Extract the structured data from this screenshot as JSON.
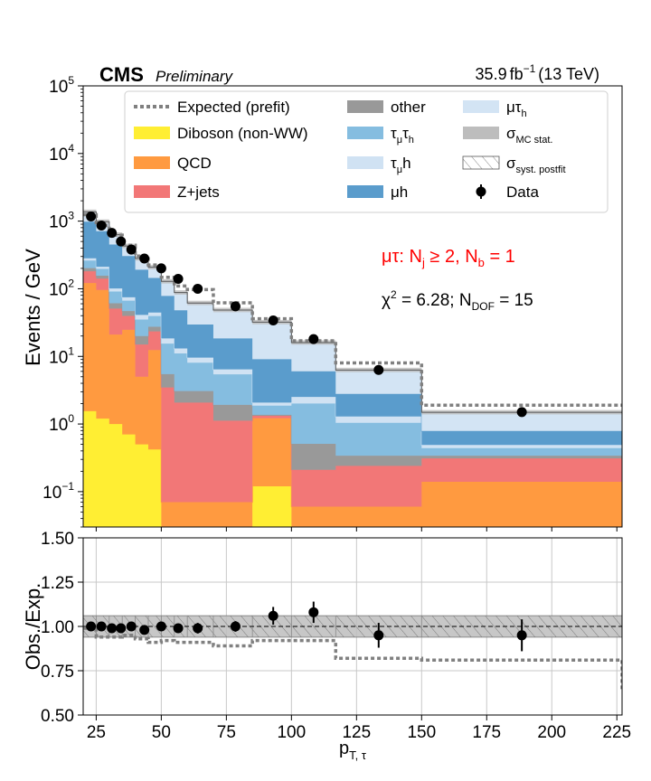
{
  "header": {
    "experiment": "CMS",
    "status": "Preliminary",
    "lumi": "35.9",
    "lumi_unit": "fb",
    "lumi_exp": "−1",
    "energy": "(13 TeV)"
  },
  "annotations": {
    "category": {
      "text_pre": "μτ: N",
      "sub1": "j",
      "mid": " ≥ 2, N",
      "sub2": "b",
      "post": " = 1",
      "color": "#ff0000"
    },
    "chi2": {
      "pre": "χ",
      "sup": "2",
      "mid": " = 6.28; N",
      "sub": "DOF",
      "post": " = 15"
    }
  },
  "legend": {
    "items": [
      {
        "label": "Expected (prefit)",
        "kind": "dotted",
        "color": "#808080"
      },
      {
        "label": "Diboson (non-WW)",
        "kind": "patch",
        "color": "#ffee33"
      },
      {
        "label": "QCD",
        "kind": "patch",
        "color": "#ff9a40"
      },
      {
        "label": "Z+jets",
        "kind": "patch",
        "color": "#f27777"
      },
      {
        "label": "other",
        "kind": "patch",
        "color": "#999999"
      },
      {
        "label": "τ",
        "sub": "μ",
        "label2": "τ",
        "sub2": "h",
        "kind": "patch",
        "color": "#85bde0"
      },
      {
        "label": "τ",
        "sub": "μ",
        "label2": "h",
        "sub2": "",
        "kind": "patch",
        "color": "#d0e2f3"
      },
      {
        "label": "μh",
        "kind": "patch",
        "color": "#5a9ccc"
      },
      {
        "label": "μτ",
        "sub": "",
        "label2": "",
        "sub2": "h",
        "kind": "patch",
        "color": "#d3e4f4"
      },
      {
        "label": "σ",
        "sub": "MC stat.",
        "kind": "patch",
        "color": "#bdbdbd"
      },
      {
        "label": "σ",
        "sub": "syst. postfit",
        "kind": "hatch",
        "color": "#ffffff"
      },
      {
        "label": "Data",
        "kind": "marker",
        "color": "#000000"
      }
    ]
  },
  "chart_data": [
    {
      "type": "area",
      "ylabel": "Events / GeV",
      "yscale": "log",
      "ylim": [
        0.03,
        100000
      ],
      "xlim": [
        20,
        227
      ],
      "yticks": [
        {
          "v": 0.1,
          "base": "10",
          "exp": "−1"
        },
        {
          "v": 1,
          "base": "10",
          "exp": "0"
        },
        {
          "v": 10,
          "base": "10",
          "exp": "1"
        },
        {
          "v": 100,
          "base": "10",
          "exp": "2"
        },
        {
          "v": 1000,
          "base": "10",
          "exp": "3"
        },
        {
          "v": 10000,
          "base": "10",
          "exp": "4"
        },
        {
          "v": 100000,
          "base": "10",
          "exp": "5"
        }
      ],
      "bin_edges": [
        20,
        25,
        30,
        35,
        40,
        45,
        50,
        55,
        60,
        70,
        85,
        100,
        117,
        150,
        227
      ],
      "stack_order": [
        "Diboson (non-WW)",
        "QCD",
        "Z+jets",
        "other",
        "τμτh",
        "τμh",
        "μh",
        "μτh"
      ],
      "series": [
        {
          "name": "Diboson (non-WW)",
          "color": "#ffee33",
          "values": [
            1.55,
            1.2,
            1.0,
            0.7,
            0.5,
            0.42,
            0.02,
            0.02,
            0.02,
            0.02,
            0.12,
            0.02,
            0.02,
            0.02
          ]
        },
        {
          "name": "QCD",
          "color": "#ff9a40",
          "values": [
            120,
            95,
            20,
            24,
            4.5,
            12,
            0.05,
            0.05,
            0.05,
            0.05,
            1.1,
            0.04,
            0.04,
            0.12
          ]
        },
        {
          "name": "Z+jets",
          "color": "#f27777",
          "values": [
            60,
            45,
            30,
            15,
            10,
            11,
            3.4,
            2.0,
            2.0,
            1.05,
            0.1,
            0.15,
            0.18,
            0.17
          ]
        },
        {
          "name": "other",
          "color": "#999999",
          "values": [
            20,
            15,
            10,
            7,
            5,
            4,
            2.0,
            1.0,
            1.0,
            0.8,
            0.05,
            0.3,
            0.1,
            0.03
          ]
        },
        {
          "name": "τμτh",
          "color": "#85bde0",
          "values": [
            60,
            40,
            30,
            20,
            15,
            12,
            10,
            8,
            5,
            3.5,
            0.5,
            1.5,
            0.7,
            0.1
          ]
        },
        {
          "name": "τμh",
          "color": "#d0e2f3",
          "values": [
            20,
            15,
            10,
            8,
            6,
            5,
            3,
            2,
            1.5,
            1.0,
            0.2,
            0.5,
            0.25,
            0.05
          ]
        },
        {
          "name": "μh",
          "color": "#5a9ccc",
          "values": [
            700,
            500,
            350,
            230,
            150,
            100,
            60,
            35,
            20,
            12,
            7,
            3.5,
            1.5,
            0.3
          ]
        },
        {
          "name": "μτh",
          "color": "#d3e4f4",
          "values": [
            390,
            270,
            180,
            125,
            90,
            64,
            50,
            40,
            32,
            30,
            23,
            10,
            3.5,
            0.7
          ]
        }
      ],
      "expected_prefit": [
        1245,
        860,
        620,
        440,
        305,
        225,
        148,
        110,
        97,
        62,
        36,
        17,
        8.0,
        1.9
      ],
      "data": {
        "x": [
          23,
          27,
          31,
          34.5,
          38.5,
          43.5,
          50,
          56.5,
          64,
          78.5,
          93,
          108.5,
          133.5,
          188.5
        ],
        "y": [
          1170,
          860,
          670,
          500,
          380,
          280,
          200,
          140,
          100,
          55,
          34,
          18,
          6.3,
          1.5
        ]
      }
    },
    {
      "type": "scatter",
      "ylabel": "Obs./Exp.",
      "xlabel": "p",
      "xlabel_sub": "T, τ",
      "ylim": [
        0.5,
        1.5
      ],
      "xlim": [
        20,
        227
      ],
      "yticks": [
        "0.50",
        "0.75",
        "1.00",
        "1.25",
        "1.50"
      ],
      "xticks": [
        "25",
        "50",
        "75",
        "100",
        "125",
        "150",
        "175",
        "200",
        "225"
      ],
      "bin_edges": [
        20,
        25,
        30,
        35,
        40,
        45,
        50,
        55,
        60,
        70,
        85,
        100,
        117,
        150,
        227
      ],
      "band": {
        "lower": 0.97,
        "upper": 1.03
      },
      "data": {
        "x": [
          23,
          27,
          31,
          34.5,
          38.5,
          43.5,
          50,
          56.5,
          64,
          78.5,
          93,
          108.5,
          133.5,
          188.5
        ],
        "y": [
          1.0,
          1.0,
          0.99,
          0.99,
          1.0,
          0.98,
          1.0,
          0.99,
          0.99,
          1.0,
          1.06,
          1.08,
          0.95,
          0.95
        ],
        "err": [
          0.01,
          0.01,
          0.012,
          0.013,
          0.014,
          0.016,
          0.018,
          0.025,
          0.03,
          0.03,
          0.05,
          0.06,
          0.07,
          0.09
        ]
      },
      "prefit_ratio": [
        0.99,
        0.94,
        0.94,
        0.95,
        0.93,
        0.91,
        0.92,
        0.91,
        0.91,
        0.89,
        0.92,
        0.92,
        0.82,
        0.81,
        0.64
      ]
    }
  ]
}
